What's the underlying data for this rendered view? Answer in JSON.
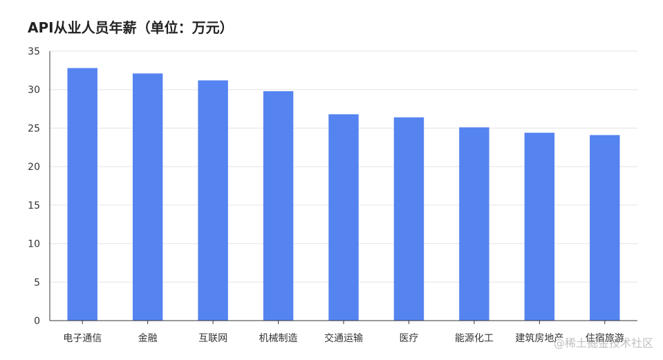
{
  "chart_data": {
    "type": "bar",
    "title": "API从业人员年薪（单位：万元）",
    "categories": [
      "电子通信",
      "金融",
      "互联网",
      "机械制造",
      "交通运输",
      "医疗",
      "能源化工",
      "建筑房地产",
      "住宿旅游"
    ],
    "values": [
      32.8,
      32.1,
      31.2,
      29.8,
      26.8,
      26.4,
      25.1,
      24.4,
      24.1
    ],
    "ylim": [
      0,
      35
    ],
    "yticks": [
      0,
      5,
      10,
      15,
      20,
      25,
      30,
      35
    ],
    "grid": true,
    "xlabel": "",
    "ylabel": "",
    "bar_color": "#5584F0",
    "grid_color": "#E3E3E3",
    "axis_color": "#333333"
  },
  "watermark": "@稀土掘金技术社区"
}
